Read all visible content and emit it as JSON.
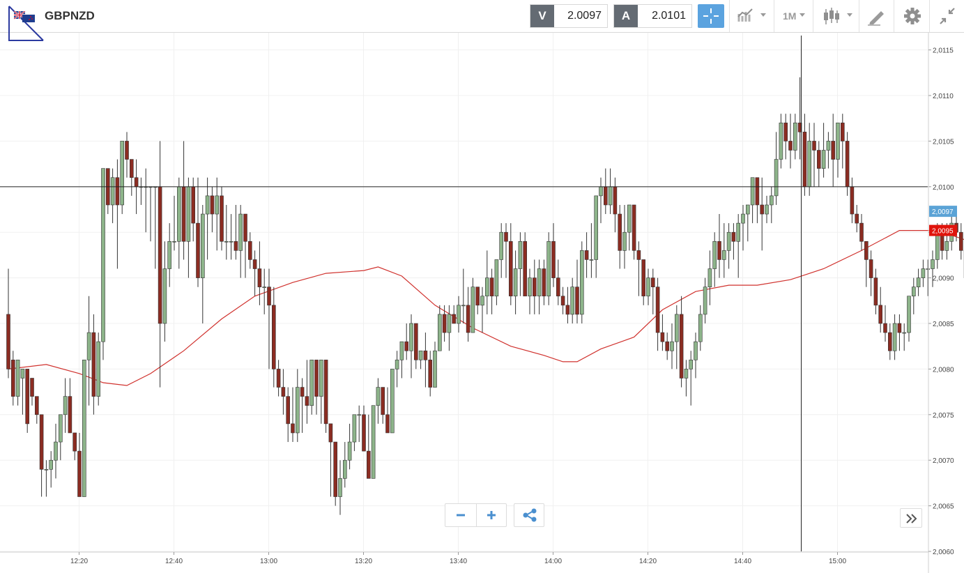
{
  "toolbar": {
    "symbol": "GBPNZD",
    "sell_label": "V",
    "sell_value": "2.0097",
    "buy_label": "A",
    "buy_value": "2.0101",
    "timeframe": "1M"
  },
  "icons": {
    "flag": "uk-nz-flag-icon",
    "crosshair": "crosshair-icon",
    "chart_type": "line-chart-icon",
    "candles": "candlestick-icon",
    "draw": "pencil-icon",
    "settings": "gear-icon",
    "fullscreen": "collapse-icon",
    "zoom_out": "minus-icon",
    "zoom_in": "plus-icon",
    "share": "share-icon",
    "scroll": "double-chevron-right-icon"
  },
  "colors": {
    "up": "#8db48a",
    "down": "#8b2c22",
    "ma": "#d0312d",
    "crosshair_btn": "#5ba3df",
    "last_price_tag": "#5ba3d6",
    "ma_tag": "#e0140c"
  },
  "chart_data": {
    "type": "candlestick",
    "instrument": "GBPNZD",
    "y_ticks": [
      "2,0060",
      "2,0065",
      "2,0070",
      "2,0075",
      "2,0080",
      "2,0085",
      "2,0090",
      "2,0095",
      "2,0100",
      "2,0105",
      "2,0110",
      "2,0115"
    ],
    "ylim": [
      2.006,
      2.01165
    ],
    "x_ticks": [
      "12:20",
      "12:40",
      "13:00",
      "13:20",
      "13:40",
      "14:00",
      "14:20",
      "14:40",
      "15:00"
    ],
    "last_price_label": "2,0097",
    "ma_label": "2,0095",
    "crosshair_price": 2.01,
    "crosshair_time": "14:52",
    "candles": [
      [
        2.0086,
        2.0091,
        2.0079,
        2.008
      ],
      [
        2.0081,
        2.0082,
        2.0076,
        2.0077
      ],
      [
        2.0077,
        2.0081,
        2.0076,
        2.0081
      ],
      [
        2.0079,
        2.008,
        2.0075,
        2.008
      ],
      [
        2.008,
        2.008,
        2.0073,
        2.0074
      ],
      [
        2.0079,
        2.0079,
        2.0076,
        2.0077
      ],
      [
        2.0077,
        2.0077,
        2.0074,
        2.0075
      ],
      [
        2.0075,
        2.0075,
        2.0066,
        2.0069
      ],
      [
        2.0069,
        2.007,
        2.0066,
        2.0069
      ],
      [
        2.0069,
        2.0071,
        2.0067,
        2.007
      ],
      [
        2.007,
        2.0074,
        2.0068,
        2.0072
      ],
      [
        2.0072,
        2.0075,
        2.007,
        2.0075
      ],
      [
        2.0075,
        2.0079,
        2.0073,
        2.0077
      ],
      [
        2.0077,
        2.0079,
        2.0073,
        2.0073
      ],
      [
        2.0073,
        2.0073,
        2.007,
        2.0071
      ],
      [
        2.0071,
        2.0073,
        2.0066,
        2.0066
      ],
      [
        2.0066,
        2.0081,
        2.0066,
        2.0081
      ],
      [
        2.0081,
        2.0088,
        2.0076,
        2.0084
      ],
      [
        2.0084,
        2.0086,
        2.0075,
        2.0077
      ],
      [
        2.0077,
        2.0084,
        2.0076,
        2.0083
      ],
      [
        2.0083,
        2.0102,
        2.0081,
        2.0102
      ],
      [
        2.0102,
        2.0102,
        2.0097,
        2.0098
      ],
      [
        2.0098,
        2.0102,
        2.0096,
        2.0101
      ],
      [
        2.0101,
        2.0103,
        2.0091,
        2.0098
      ],
      [
        2.0098,
        2.0105,
        2.0097,
        2.0105
      ],
      [
        2.0105,
        2.0106,
        2.0101,
        2.0103
      ],
      [
        2.0103,
        2.0103,
        2.0099,
        2.0101
      ],
      [
        2.0101,
        2.0103,
        2.0097,
        2.01
      ],
      [
        2.01,
        2.0101,
        2.0098,
        2.01
      ],
      [
        2.01,
        2.0102,
        2.0095,
        2.01
      ],
      [
        2.01,
        2.01,
        2.0094,
        2.01
      ],
      [
        2.01,
        2.01,
        2.0091,
        2.01
      ],
      [
        2.01,
        2.0105,
        2.0078,
        2.0085
      ],
      [
        2.0085,
        2.0094,
        2.0083,
        2.0091
      ],
      [
        2.0091,
        2.0096,
        2.0089,
        2.0094
      ],
      [
        2.0094,
        2.0099,
        2.0093,
        2.0094
      ],
      [
        2.0094,
        2.0101,
        2.0091,
        2.01
      ],
      [
        2.01,
        2.0105,
        2.0092,
        2.0094
      ],
      [
        2.0094,
        2.0101,
        2.009,
        2.01
      ],
      [
        2.01,
        2.0101,
        2.0094,
        2.0096
      ],
      [
        2.0096,
        2.0101,
        2.0089,
        2.009
      ],
      [
        2.009,
        2.0098,
        2.0085,
        2.0097
      ],
      [
        2.0097,
        2.0101,
        2.0092,
        2.0099
      ],
      [
        2.0099,
        2.01,
        2.0095,
        2.0097
      ],
      [
        2.0097,
        2.0101,
        2.0093,
        2.0099
      ],
      [
        2.0099,
        2.01,
        2.0093,
        2.0094
      ],
      [
        2.0094,
        2.0098,
        2.0092,
        2.0094
      ],
      [
        2.0094,
        2.0097,
        2.0092,
        2.0094
      ],
      [
        2.0094,
        2.0098,
        2.0092,
        2.0093
      ],
      [
        2.0093,
        2.0098,
        2.009,
        2.0097
      ],
      [
        2.0097,
        2.0097,
        2.009,
        2.0094
      ],
      [
        2.0094,
        2.0095,
        2.0091,
        2.0092
      ],
      [
        2.0092,
        2.0093,
        2.0088,
        2.0091
      ],
      [
        2.0091,
        2.0094,
        2.0087,
        2.0089
      ],
      [
        2.0089,
        2.0091,
        2.0086,
        2.0089
      ],
      [
        2.0089,
        2.0091,
        2.008,
        2.0087
      ],
      [
        2.0087,
        2.0089,
        2.0078,
        2.008
      ],
      [
        2.008,
        2.0081,
        2.0077,
        2.0078
      ],
      [
        2.0078,
        2.008,
        2.0075,
        2.0077
      ],
      [
        2.0077,
        2.0078,
        2.0072,
        2.0074
      ],
      [
        2.0074,
        2.0078,
        2.0072,
        2.0073
      ],
      [
        2.0073,
        2.008,
        2.0072,
        2.0078
      ],
      [
        2.0078,
        2.0079,
        2.0073,
        2.0077
      ],
      [
        2.0077,
        2.0081,
        2.0074,
        2.0076
      ],
      [
        2.0076,
        2.0081,
        2.0075,
        2.0081
      ],
      [
        2.0081,
        2.0081,
        2.0075,
        2.0077
      ],
      [
        2.0077,
        2.0081,
        2.0074,
        2.0081
      ],
      [
        2.0081,
        2.0081,
        2.0073,
        2.0074
      ],
      [
        2.0074,
        2.0074,
        2.0066,
        2.0072
      ],
      [
        2.0072,
        2.0072,
        2.0065,
        2.0066
      ],
      [
        2.0066,
        2.007,
        2.0064,
        2.0068
      ],
      [
        2.0068,
        2.0072,
        2.0067,
        2.007
      ],
      [
        2.007,
        2.0074,
        2.0069,
        2.0072
      ],
      [
        2.0072,
        2.0075,
        2.0071,
        2.0075
      ],
      [
        2.0075,
        2.0076,
        2.0072,
        2.0075
      ],
      [
        2.0075,
        2.0076,
        2.0071,
        2.0071
      ],
      [
        2.0071,
        2.0075,
        2.0068,
        2.0068
      ],
      [
        2.0068,
        2.0076,
        2.0068,
        2.0076
      ],
      [
        2.0076,
        2.0079,
        2.0074,
        2.0078
      ],
      [
        2.0078,
        2.0078,
        2.0074,
        2.0075
      ],
      [
        2.0075,
        2.0078,
        2.0073,
        2.0073
      ],
      [
        2.0073,
        2.008,
        2.0073,
        2.008
      ],
      [
        2.008,
        2.0082,
        2.0078,
        2.0081
      ],
      [
        2.0081,
        2.0083,
        2.0079,
        2.0083
      ],
      [
        2.0083,
        2.0085,
        2.0081,
        2.0082
      ],
      [
        2.0082,
        2.0086,
        2.0079,
        2.0085
      ],
      [
        2.0085,
        2.0085,
        2.008,
        2.0081
      ],
      [
        2.0081,
        2.0082,
        2.008,
        2.0082
      ],
      [
        2.0082,
        2.0084,
        2.0078,
        2.0081
      ],
      [
        2.0081,
        2.0082,
        2.0077,
        2.0078
      ],
      [
        2.0078,
        2.0083,
        2.0078,
        2.0082
      ],
      [
        2.0082,
        2.0087,
        2.0082,
        2.0086
      ],
      [
        2.0086,
        2.0087,
        2.0083,
        2.0084
      ],
      [
        2.0084,
        2.0087,
        2.0082,
        2.0086
      ],
      [
        2.0086,
        2.0087,
        2.0085,
        2.0085
      ],
      [
        2.0085,
        2.0088,
        2.0084,
        2.0087
      ],
      [
        2.0087,
        2.0091,
        2.0085,
        2.0087
      ],
      [
        2.0087,
        2.0089,
        2.0083,
        2.0084
      ],
      [
        2.0084,
        2.009,
        2.0084,
        2.0089
      ],
      [
        2.0089,
        2.0089,
        2.0086,
        2.0087
      ],
      [
        2.0087,
        2.0089,
        2.0084,
        2.0088
      ],
      [
        2.0088,
        2.0093,
        2.0086,
        2.009
      ],
      [
        2.009,
        2.0091,
        2.0086,
        2.0088
      ],
      [
        2.0088,
        2.0092,
        2.0087,
        2.0092
      ],
      [
        2.0092,
        2.0096,
        2.009,
        2.0095
      ],
      [
        2.0095,
        2.0096,
        2.009,
        2.0094
      ],
      [
        2.0094,
        2.0096,
        2.0087,
        2.0088
      ],
      [
        2.0088,
        2.0093,
        2.0086,
        2.0091
      ],
      [
        2.0091,
        2.0095,
        2.0088,
        2.0094
      ],
      [
        2.0094,
        2.0095,
        2.0088,
        2.0088
      ],
      [
        2.0088,
        2.0091,
        2.0086,
        2.009
      ],
      [
        2.009,
        2.0092,
        2.0086,
        2.0088
      ],
      [
        2.0088,
        2.0092,
        2.0086,
        2.0091
      ],
      [
        2.0091,
        2.0092,
        2.0087,
        2.0088
      ],
      [
        2.0088,
        2.0095,
        2.0087,
        2.0094
      ],
      [
        2.0094,
        2.0096,
        2.0089,
        2.009
      ],
      [
        2.009,
        2.0092,
        2.0087,
        2.0088
      ],
      [
        2.0088,
        2.0089,
        2.0086,
        2.0087
      ],
      [
        2.0087,
        2.0089,
        2.0085,
        2.0086
      ],
      [
        2.0086,
        2.009,
        2.0085,
        2.0089
      ],
      [
        2.0089,
        2.0092,
        2.0085,
        2.0086
      ],
      [
        2.0086,
        2.0094,
        2.0085,
        2.0093
      ],
      [
        2.0093,
        2.0095,
        2.009,
        2.0092
      ],
      [
        2.0092,
        2.0096,
        2.009,
        2.0092
      ],
      [
        2.0092,
        2.0099,
        2.009,
        2.0099
      ],
      [
        2.0099,
        2.0101,
        2.0096,
        2.01
      ],
      [
        2.01,
        2.0102,
        2.0097,
        2.0098
      ],
      [
        2.0098,
        2.0102,
        2.0097,
        2.01
      ],
      [
        2.01,
        2.0101,
        2.0095,
        2.0097
      ],
      [
        2.0097,
        2.0098,
        2.0091,
        2.0093
      ],
      [
        2.0093,
        2.0098,
        2.0091,
        2.0095
      ],
      [
        2.0095,
        2.0098,
        2.0093,
        2.0098
      ],
      [
        2.0098,
        2.0098,
        2.0092,
        2.0093
      ],
      [
        2.0093,
        2.0094,
        2.0088,
        2.0092
      ],
      [
        2.0092,
        2.0092,
        2.0087,
        2.0088
      ],
      [
        2.0088,
        2.0091,
        2.0087,
        2.009
      ],
      [
        2.009,
        2.0091,
        2.0086,
        2.0089
      ],
      [
        2.0089,
        2.009,
        2.0082,
        2.0084
      ],
      [
        2.0084,
        2.0086,
        2.0082,
        2.0083
      ],
      [
        2.0083,
        2.0084,
        2.0081,
        2.0082
      ],
      [
        2.0082,
        2.0085,
        2.008,
        2.0083
      ],
      [
        2.0083,
        2.0087,
        2.008,
        2.0086
      ],
      [
        2.0086,
        2.0088,
        2.0078,
        2.0079
      ],
      [
        2.0079,
        2.0081,
        2.0077,
        2.008
      ],
      [
        2.008,
        2.0082,
        2.0076,
        2.0081
      ],
      [
        2.0081,
        2.0084,
        2.0079,
        2.0083
      ],
      [
        2.0083,
        2.0087,
        2.0082,
        2.0086
      ],
      [
        2.0086,
        2.009,
        2.0085,
        2.0089
      ],
      [
        2.0089,
        2.0093,
        2.0087,
        2.0091
      ],
      [
        2.0091,
        2.0095,
        2.0089,
        2.0094
      ],
      [
        2.0094,
        2.0097,
        2.009,
        2.0092
      ],
      [
        2.0092,
        2.0096,
        2.009,
        2.0093
      ],
      [
        2.0093,
        2.0096,
        2.0091,
        2.0095
      ],
      [
        2.0095,
        2.0096,
        2.0092,
        2.0094
      ],
      [
        2.0094,
        2.0097,
        2.009,
        2.0096
      ],
      [
        2.0096,
        2.0098,
        2.0093,
        2.0097
      ],
      [
        2.0097,
        2.0098,
        2.0094,
        2.0098
      ],
      [
        2.0098,
        2.0101,
        2.0096,
        2.0101
      ],
      [
        2.0101,
        2.0101,
        2.0096,
        2.0098
      ],
      [
        2.0098,
        2.0101,
        2.0093,
        2.0097
      ],
      [
        2.0097,
        2.0099,
        2.0096,
        2.0098
      ],
      [
        2.0098,
        2.01,
        2.0096,
        2.0099
      ],
      [
        2.0099,
        2.0106,
        2.0098,
        2.0103
      ],
      [
        2.0103,
        2.0108,
        2.0102,
        2.0107
      ],
      [
        2.0107,
        2.0108,
        2.0103,
        2.0105
      ],
      [
        2.0105,
        2.0108,
        2.0102,
        2.0104
      ],
      [
        2.0104,
        2.0108,
        2.0103,
        2.0107
      ],
      [
        2.0107,
        2.0112,
        2.0103,
        2.0106
      ],
      [
        2.0106,
        2.0108,
        2.0099,
        2.01
      ],
      [
        2.01,
        2.0107,
        2.0099,
        2.0105
      ],
      [
        2.0105,
        2.0107,
        2.01,
        2.0104
      ],
      [
        2.0104,
        2.0105,
        2.01,
        2.0102
      ],
      [
        2.0102,
        2.0107,
        2.0101,
        2.0104
      ],
      [
        2.0104,
        2.0106,
        2.0102,
        2.0105
      ],
      [
        2.0105,
        2.0108,
        2.01,
        2.0103
      ],
      [
        2.0103,
        2.0107,
        2.0101,
        2.0107
      ],
      [
        2.0107,
        2.0108,
        2.0102,
        2.0105
      ],
      [
        2.0105,
        2.0106,
        2.0099,
        2.01
      ],
      [
        2.01,
        2.0101,
        2.0096,
        2.0097
      ],
      [
        2.0097,
        2.0098,
        2.0095,
        2.0096
      ],
      [
        2.0096,
        2.0097,
        2.0093,
        2.0094
      ],
      [
        2.0094,
        2.0094,
        2.0089,
        2.0092
      ],
      [
        2.0092,
        2.0093,
        2.0088,
        2.009
      ],
      [
        2.009,
        2.0091,
        2.0086,
        2.0087
      ],
      [
        2.0087,
        2.0089,
        2.0084,
        2.0085
      ],
      [
        2.0085,
        2.0087,
        2.0083,
        2.0084
      ],
      [
        2.0084,
        2.0085,
        2.0081,
        2.0082
      ],
      [
        2.0082,
        2.0086,
        2.0081,
        2.0085
      ],
      [
        2.0085,
        2.0086,
        2.0082,
        2.0084
      ],
      [
        2.0084,
        2.0085,
        2.0082,
        2.0084
      ],
      [
        2.0084,
        2.0088,
        2.0083,
        2.0088
      ],
      [
        2.0088,
        2.009,
        2.0086,
        2.0089
      ],
      [
        2.0089,
        2.0091,
        2.0088,
        2.009
      ],
      [
        2.009,
        2.0092,
        2.0089,
        2.0091
      ],
      [
        2.0091,
        2.0092,
        2.0088,
        2.0091
      ],
      [
        2.0091,
        2.0093,
        2.0089,
        2.0092
      ],
      [
        2.0092,
        2.0096,
        2.0091,
        2.0095
      ],
      [
        2.0095,
        2.0096,
        2.0092,
        2.0093
      ],
      [
        2.0093,
        2.0096,
        2.0092,
        2.0094
      ],
      [
        2.0094,
        2.0097,
        2.0093,
        2.0096
      ],
      [
        2.0096,
        2.0097,
        2.0094,
        2.0095
      ],
      [
        2.0095,
        2.0096,
        2.0092,
        2.0093
      ],
      [
        2.0093,
        2.0094,
        2.0089,
        2.009
      ],
      [
        2.009,
        2.0094,
        2.0089,
        2.0091
      ],
      [
        2.0091,
        2.0097,
        2.009,
        2.0097
      ]
    ],
    "ma": [
      [
        0,
        2.008
      ],
      [
        8,
        2.00805
      ],
      [
        15,
        2.00795
      ],
      [
        20,
        2.00785
      ],
      [
        25,
        2.00782
      ],
      [
        30,
        2.00795
      ],
      [
        37,
        2.0082
      ],
      [
        45,
        2.00855
      ],
      [
        52,
        2.0088
      ],
      [
        60,
        2.00895
      ],
      [
        67,
        2.00905
      ],
      [
        75,
        2.00908
      ],
      [
        78,
        2.00912
      ],
      [
        83,
        2.00902
      ],
      [
        90,
        2.0087
      ],
      [
        98,
        2.00845
      ],
      [
        106,
        2.00825
      ],
      [
        113,
        2.00815
      ],
      [
        117,
        2.00808
      ],
      [
        120,
        2.00808
      ],
      [
        125,
        2.00822
      ],
      [
        132,
        2.00835
      ],
      [
        138,
        2.00865
      ],
      [
        145,
        2.00885
      ],
      [
        152,
        2.00892
      ],
      [
        158,
        2.00892
      ],
      [
        165,
        2.00898
      ],
      [
        172,
        2.0091
      ],
      [
        180,
        2.0093
      ],
      [
        188,
        2.00952
      ],
      [
        196,
        2.00952
      ],
      [
        204,
        2.00938
      ],
      [
        210,
        2.0094
      ],
      [
        219,
        2.00953
      ],
      [
        230,
        2.00958
      ]
    ]
  }
}
